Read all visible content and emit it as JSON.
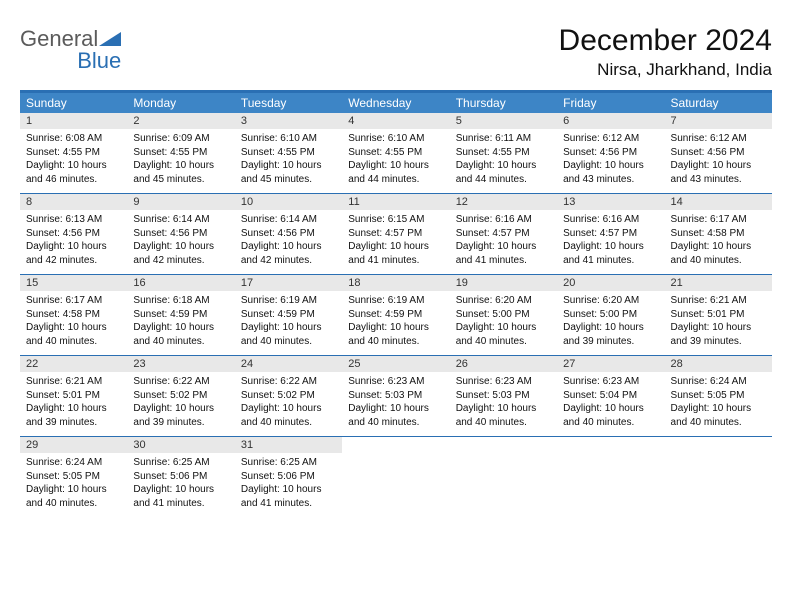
{
  "logo": {
    "line1": "General",
    "line2": "Blue"
  },
  "title": "December 2024",
  "location": "Nirsa, Jharkhand, India",
  "colors": {
    "header_bg": "#3d85c6",
    "header_border": "#2a6fb3",
    "daynum_bg": "#e8e8e8",
    "text": "#111111",
    "logo_gray": "#5b5b5b",
    "logo_blue": "#2a6fb3",
    "background": "#ffffff"
  },
  "typography": {
    "title_fontsize": 30,
    "location_fontsize": 17,
    "dayheader_fontsize": 12,
    "daynum_fontsize": 11,
    "body_fontsize": 10
  },
  "day_headers": [
    "Sunday",
    "Monday",
    "Tuesday",
    "Wednesday",
    "Thursday",
    "Friday",
    "Saturday"
  ],
  "weeks": [
    [
      {
        "n": "1",
        "sr": "Sunrise: 6:08 AM",
        "ss": "Sunset: 4:55 PM",
        "dl": "Daylight: 10 hours and 46 minutes."
      },
      {
        "n": "2",
        "sr": "Sunrise: 6:09 AM",
        "ss": "Sunset: 4:55 PM",
        "dl": "Daylight: 10 hours and 45 minutes."
      },
      {
        "n": "3",
        "sr": "Sunrise: 6:10 AM",
        "ss": "Sunset: 4:55 PM",
        "dl": "Daylight: 10 hours and 45 minutes."
      },
      {
        "n": "4",
        "sr": "Sunrise: 6:10 AM",
        "ss": "Sunset: 4:55 PM",
        "dl": "Daylight: 10 hours and 44 minutes."
      },
      {
        "n": "5",
        "sr": "Sunrise: 6:11 AM",
        "ss": "Sunset: 4:55 PM",
        "dl": "Daylight: 10 hours and 44 minutes."
      },
      {
        "n": "6",
        "sr": "Sunrise: 6:12 AM",
        "ss": "Sunset: 4:56 PM",
        "dl": "Daylight: 10 hours and 43 minutes."
      },
      {
        "n": "7",
        "sr": "Sunrise: 6:12 AM",
        "ss": "Sunset: 4:56 PM",
        "dl": "Daylight: 10 hours and 43 minutes."
      }
    ],
    [
      {
        "n": "8",
        "sr": "Sunrise: 6:13 AM",
        "ss": "Sunset: 4:56 PM",
        "dl": "Daylight: 10 hours and 42 minutes."
      },
      {
        "n": "9",
        "sr": "Sunrise: 6:14 AM",
        "ss": "Sunset: 4:56 PM",
        "dl": "Daylight: 10 hours and 42 minutes."
      },
      {
        "n": "10",
        "sr": "Sunrise: 6:14 AM",
        "ss": "Sunset: 4:56 PM",
        "dl": "Daylight: 10 hours and 42 minutes."
      },
      {
        "n": "11",
        "sr": "Sunrise: 6:15 AM",
        "ss": "Sunset: 4:57 PM",
        "dl": "Daylight: 10 hours and 41 minutes."
      },
      {
        "n": "12",
        "sr": "Sunrise: 6:16 AM",
        "ss": "Sunset: 4:57 PM",
        "dl": "Daylight: 10 hours and 41 minutes."
      },
      {
        "n": "13",
        "sr": "Sunrise: 6:16 AM",
        "ss": "Sunset: 4:57 PM",
        "dl": "Daylight: 10 hours and 41 minutes."
      },
      {
        "n": "14",
        "sr": "Sunrise: 6:17 AM",
        "ss": "Sunset: 4:58 PM",
        "dl": "Daylight: 10 hours and 40 minutes."
      }
    ],
    [
      {
        "n": "15",
        "sr": "Sunrise: 6:17 AM",
        "ss": "Sunset: 4:58 PM",
        "dl": "Daylight: 10 hours and 40 minutes."
      },
      {
        "n": "16",
        "sr": "Sunrise: 6:18 AM",
        "ss": "Sunset: 4:59 PM",
        "dl": "Daylight: 10 hours and 40 minutes."
      },
      {
        "n": "17",
        "sr": "Sunrise: 6:19 AM",
        "ss": "Sunset: 4:59 PM",
        "dl": "Daylight: 10 hours and 40 minutes."
      },
      {
        "n": "18",
        "sr": "Sunrise: 6:19 AM",
        "ss": "Sunset: 4:59 PM",
        "dl": "Daylight: 10 hours and 40 minutes."
      },
      {
        "n": "19",
        "sr": "Sunrise: 6:20 AM",
        "ss": "Sunset: 5:00 PM",
        "dl": "Daylight: 10 hours and 40 minutes."
      },
      {
        "n": "20",
        "sr": "Sunrise: 6:20 AM",
        "ss": "Sunset: 5:00 PM",
        "dl": "Daylight: 10 hours and 39 minutes."
      },
      {
        "n": "21",
        "sr": "Sunrise: 6:21 AM",
        "ss": "Sunset: 5:01 PM",
        "dl": "Daylight: 10 hours and 39 minutes."
      }
    ],
    [
      {
        "n": "22",
        "sr": "Sunrise: 6:21 AM",
        "ss": "Sunset: 5:01 PM",
        "dl": "Daylight: 10 hours and 39 minutes."
      },
      {
        "n": "23",
        "sr": "Sunrise: 6:22 AM",
        "ss": "Sunset: 5:02 PM",
        "dl": "Daylight: 10 hours and 39 minutes."
      },
      {
        "n": "24",
        "sr": "Sunrise: 6:22 AM",
        "ss": "Sunset: 5:02 PM",
        "dl": "Daylight: 10 hours and 40 minutes."
      },
      {
        "n": "25",
        "sr": "Sunrise: 6:23 AM",
        "ss": "Sunset: 5:03 PM",
        "dl": "Daylight: 10 hours and 40 minutes."
      },
      {
        "n": "26",
        "sr": "Sunrise: 6:23 AM",
        "ss": "Sunset: 5:03 PM",
        "dl": "Daylight: 10 hours and 40 minutes."
      },
      {
        "n": "27",
        "sr": "Sunrise: 6:23 AM",
        "ss": "Sunset: 5:04 PM",
        "dl": "Daylight: 10 hours and 40 minutes."
      },
      {
        "n": "28",
        "sr": "Sunrise: 6:24 AM",
        "ss": "Sunset: 5:05 PM",
        "dl": "Daylight: 10 hours and 40 minutes."
      }
    ],
    [
      {
        "n": "29",
        "sr": "Sunrise: 6:24 AM",
        "ss": "Sunset: 5:05 PM",
        "dl": "Daylight: 10 hours and 40 minutes."
      },
      {
        "n": "30",
        "sr": "Sunrise: 6:25 AM",
        "ss": "Sunset: 5:06 PM",
        "dl": "Daylight: 10 hours and 41 minutes."
      },
      {
        "n": "31",
        "sr": "Sunrise: 6:25 AM",
        "ss": "Sunset: 5:06 PM",
        "dl": "Daylight: 10 hours and 41 minutes."
      },
      null,
      null,
      null,
      null
    ]
  ]
}
